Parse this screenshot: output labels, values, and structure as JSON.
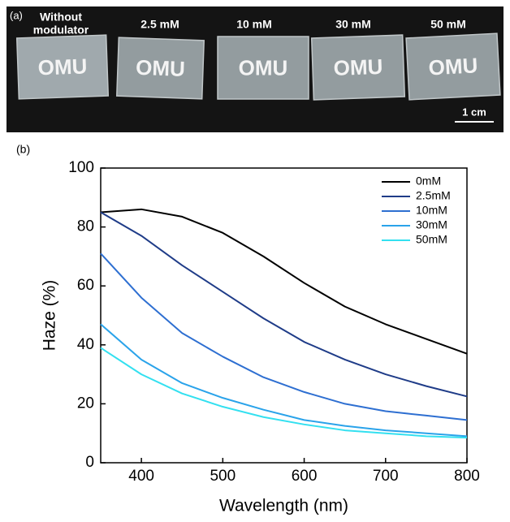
{
  "panel_a": {
    "label": "(a)",
    "samples": [
      [
        "Without",
        "modulator"
      ],
      [
        "2.5 mM"
      ],
      [
        "10 mM"
      ],
      [
        "30 mM"
      ],
      [
        "50 mM"
      ]
    ],
    "plate_text": "OMU",
    "scale_bar": "1 cm"
  },
  "chart_data": {
    "type": "line",
    "panel_label": "(b)",
    "xlabel": "Wavelength (nm)",
    "ylabel": "Haze (%)",
    "x": [
      350,
      400,
      450,
      500,
      550,
      600,
      650,
      700,
      750,
      800
    ],
    "series": [
      {
        "name": "0mM",
        "color": "#000000",
        "values": [
          85,
          86,
          83.5,
          78,
          70,
          61,
          53,
          47,
          42,
          37
        ]
      },
      {
        "name": "2.5mM",
        "color": "#1f3c88",
        "values": [
          85,
          77,
          67,
          58,
          49,
          41,
          35,
          30,
          26,
          22.5
        ]
      },
      {
        "name": "10mM",
        "color": "#2e6fd1",
        "values": [
          71,
          56,
          44,
          36,
          29,
          24,
          20,
          17.5,
          16,
          14.5
        ]
      },
      {
        "name": "30mM",
        "color": "#2aa3ea",
        "values": [
          47,
          35,
          27,
          22,
          18,
          14.5,
          12.5,
          11,
          10,
          9
        ]
      },
      {
        "name": "50mM",
        "color": "#33e0f0",
        "values": [
          39,
          30,
          23.5,
          19,
          15.5,
          13,
          11,
          10,
          9,
          8.5
        ]
      }
    ],
    "xlim": [
      350,
      800
    ],
    "xticks": [
      400,
      500,
      600,
      700,
      800
    ],
    "ylim": [
      0,
      100
    ],
    "yticks": [
      0,
      20,
      40,
      60,
      80,
      100
    ],
    "legend": "upper right"
  }
}
